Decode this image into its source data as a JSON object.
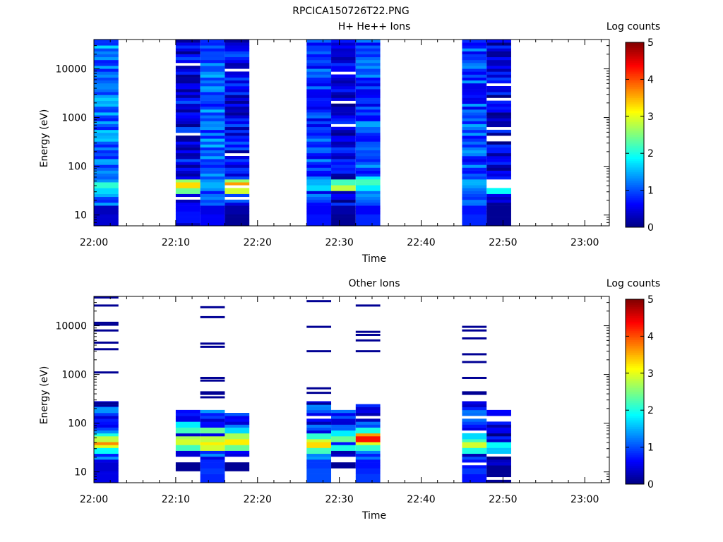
{
  "figure_title": "RPCICA150726T22.PNG",
  "chart_data": [
    {
      "type": "heatmap",
      "title": "H+ He++ Ions",
      "xlabel": "Time",
      "ylabel": "Energy (eV)",
      "y_scale": "log",
      "ylim": [
        6,
        40000
      ],
      "xlim": [
        "22:00",
        "23:03"
      ],
      "x_ticks": [
        "22:00",
        "22:10",
        "22:20",
        "22:30",
        "22:40",
        "22:50",
        "23:00"
      ],
      "y_ticks": [
        "10",
        "100",
        "1000",
        "10000"
      ],
      "colorbar": {
        "label": "Log counts",
        "range": [
          0,
          5
        ],
        "ticks": [
          "0",
          "1",
          "2",
          "3",
          "4",
          "5"
        ]
      },
      "columns": [
        {
          "start": "22:00",
          "end": "22:03",
          "seed": 11,
          "base": 1.2,
          "spread": 0.5,
          "gaps": 0.0,
          "peaks": [
            {
              "e": 40,
              "v": 2.1
            },
            {
              "e": 30,
              "v": 1.7
            }
          ],
          "low": [
            {
              "e": 12,
              "v": 0.3
            },
            {
              "e": 8,
              "v": 0.4
            }
          ]
        },
        {
          "start": "22:10",
          "end": "22:13",
          "seed": 23,
          "base": 0.55,
          "spread": 0.5,
          "gaps": 0.05,
          "peaks": [
            {
              "e": 50,
              "v": 2.6
            },
            {
              "e": 40,
              "v": 3.3
            },
            {
              "e": 33,
              "v": 2.4
            }
          ],
          "low": [
            {
              "e": 15,
              "v": 0.6
            },
            {
              "e": 9,
              "v": 0.7
            }
          ]
        },
        {
          "start": "22:13",
          "end": "22:16",
          "seed": 37,
          "base": 1.1,
          "spread": 0.45,
          "gaps": 0.0,
          "peaks": [
            {
              "e": 40,
              "v": 1.5
            }
          ],
          "low": [
            {
              "e": 12,
              "v": 0.5
            },
            {
              "e": 8,
              "v": 0.6
            }
          ]
        },
        {
          "start": "22:16",
          "end": "22:19",
          "seed": 41,
          "base": 0.6,
          "spread": 0.5,
          "gaps": 0.07,
          "peaks": [
            {
              "e": 50,
              "v": 2.6
            },
            {
              "e": 40,
              "v": 3.6
            },
            {
              "e": 32,
              "v": 2.9
            }
          ],
          "low": [
            {
              "e": 12,
              "v": 0.2
            },
            {
              "e": 8,
              "v": 0.1
            }
          ]
        },
        {
          "start": "22:26",
          "end": "22:29",
          "seed": 53,
          "base": 0.95,
          "spread": 0.5,
          "gaps": 0.0,
          "peaks": [
            {
              "e": 50,
              "v": 1.5
            },
            {
              "e": 38,
              "v": 1.7
            }
          ],
          "low": [
            {
              "e": 12,
              "v": 0.6
            },
            {
              "e": 8,
              "v": 0.7
            }
          ]
        },
        {
          "start": "22:29",
          "end": "22:32",
          "seed": 61,
          "base": 0.45,
          "spread": 0.5,
          "gaps": 0.07,
          "peaks": [
            {
              "e": 45,
              "v": 2.2
            },
            {
              "e": 36,
              "v": 2.8
            }
          ],
          "low": [
            {
              "e": 12,
              "v": 0.2
            },
            {
              "e": 8,
              "v": 0.1
            }
          ]
        },
        {
          "start": "22:32",
          "end": "22:35",
          "seed": 73,
          "base": 0.95,
          "spread": 0.5,
          "gaps": 0.0,
          "peaks": [
            {
              "e": 55,
              "v": 1.8
            },
            {
              "e": 45,
              "v": 2.2
            },
            {
              "e": 36,
              "v": 1.8
            }
          ],
          "low": [
            {
              "e": 12,
              "v": 0.6
            },
            {
              "e": 8,
              "v": 0.8
            }
          ]
        },
        {
          "start": "22:45",
          "end": "22:48",
          "seed": 83,
          "base": 1.0,
          "spread": 0.5,
          "gaps": 0.0,
          "peaks": [
            {
              "e": 45,
              "v": 1.5
            }
          ],
          "low": [
            {
              "e": 12,
              "v": 0.7
            },
            {
              "e": 8,
              "v": 0.8
            }
          ]
        },
        {
          "start": "22:48",
          "end": "22:51",
          "seed": 97,
          "base": 0.45,
          "spread": 0.5,
          "gaps": 0.07,
          "peaks": [
            {
              "e": 40,
              "v": 1.7
            },
            {
              "e": 33,
              "v": 1.9
            }
          ],
          "low": [
            {
              "e": 12,
              "v": 0.1
            },
            {
              "e": 8,
              "v": 0.1
            }
          ]
        }
      ]
    },
    {
      "type": "heatmap",
      "title": "Other Ions",
      "xlabel": "Time",
      "ylabel": "Energy (eV)",
      "y_scale": "log",
      "ylim": [
        6,
        40000
      ],
      "xlim": [
        "22:00",
        "23:03"
      ],
      "x_ticks": [
        "22:00",
        "22:10",
        "22:20",
        "22:30",
        "22:40",
        "22:50",
        "23:00"
      ],
      "y_ticks": [
        "10",
        "100",
        "1000",
        "10000"
      ],
      "colorbar": {
        "label": "Log counts",
        "range": [
          0,
          5
        ],
        "ticks": [
          "0",
          "1",
          "2",
          "3",
          "4",
          "5"
        ]
      },
      "columns": [
        {
          "start": "22:00",
          "end": "22:03",
          "seed": 101,
          "base": 0.9,
          "spread": 0.6,
          "gaps": 0.0,
          "top": 280,
          "peaks": [
            {
              "e": 55,
              "v": 2.0
            },
            {
              "e": 45,
              "v": 2.8
            },
            {
              "e": 38,
              "v": 3.7
            },
            {
              "e": 32,
              "v": 3.0
            },
            {
              "e": 28,
              "v": 1.9
            }
          ],
          "sparse": [
            11500,
            10500,
            8000,
            4500,
            3300,
            1100,
            255,
            230,
            26000,
            38000
          ],
          "low": [
            {
              "e": 12,
              "v": 0.4
            },
            {
              "e": 8,
              "v": 0.5
            }
          ]
        },
        {
          "start": "22:10",
          "end": "22:13",
          "seed": 113,
          "base": 0.9,
          "spread": 0.55,
          "gaps": 0.0,
          "top": 175,
          "bottom": 20,
          "peaks": [
            {
              "e": 95,
              "v": 1.8
            },
            {
              "e": 70,
              "v": 2.2
            },
            {
              "e": 50,
              "v": 2.7
            },
            {
              "e": 40,
              "v": 2.9
            },
            {
              "e": 30,
              "v": 2.2
            }
          ],
          "sparse": [],
          "block": [
            {
              "from": 11,
              "to": 15,
              "v": 0.1
            }
          ]
        },
        {
          "start": "22:13",
          "end": "22:16",
          "seed": 127,
          "base": 0.9,
          "spread": 0.55,
          "gaps": 0.0,
          "top": 200,
          "peaks": [
            {
              "e": 70,
              "v": 2.4
            },
            {
              "e": 50,
              "v": 2.8
            },
            {
              "e": 38,
              "v": 3.2
            },
            {
              "e": 32,
              "v": 2.9
            }
          ],
          "sparse": [
            24000,
            15000,
            4300,
            3700,
            850,
            750,
            430,
            400,
            340
          ],
          "low": [
            {
              "e": 15,
              "v": 0.8
            },
            {
              "e": 10,
              "v": 0.9
            },
            {
              "e": 7,
              "v": 0.8
            }
          ]
        },
        {
          "start": "22:16",
          "end": "22:19",
          "seed": 131,
          "base": 0.9,
          "spread": 0.55,
          "gaps": 0.0,
          "top": 170,
          "bottom": 20,
          "peaks": [
            {
              "e": 75,
              "v": 1.7
            },
            {
              "e": 55,
              "v": 2.7
            },
            {
              "e": 42,
              "v": 3.2
            },
            {
              "e": 33,
              "v": 2.4
            }
          ],
          "sparse": [],
          "block": [
            {
              "from": 11,
              "to": 15,
              "v": 0.1
            }
          ]
        },
        {
          "start": "22:26",
          "end": "22:29",
          "seed": 139,
          "base": 0.8,
          "spread": 0.6,
          "gaps": 0.05,
          "top": 280,
          "peaks": [
            {
              "e": 55,
              "v": 2.1
            },
            {
              "e": 42,
              "v": 2.9
            },
            {
              "e": 34,
              "v": 3.3
            },
            {
              "e": 28,
              "v": 2.2
            }
          ],
          "sparse": [
            32000,
            9500,
            3000,
            520,
            420,
            250
          ],
          "low": [
            {
              "e": 15,
              "v": 0.9
            },
            {
              "e": 9,
              "v": 1.0
            },
            {
              "e": 7,
              "v": 1.0
            }
          ]
        },
        {
          "start": "22:29",
          "end": "22:32",
          "seed": 149,
          "base": 0.7,
          "spread": 0.5,
          "gaps": 0.05,
          "top": 190,
          "bottom": 20,
          "peaks": [
            {
              "e": 65,
              "v": 1.8
            },
            {
              "e": 45,
              "v": 2.4
            },
            {
              "e": 33,
              "v": 2.0
            }
          ],
          "sparse": [],
          "block": [
            {
              "from": 11,
              "to": 15,
              "v": 0.1
            }
          ]
        },
        {
          "start": "22:32",
          "end": "22:35",
          "seed": 151,
          "base": 0.8,
          "spread": 0.6,
          "gaps": 0.05,
          "top": 230,
          "peaks": [
            {
              "e": 70,
              "v": 2.0
            },
            {
              "e": 55,
              "v": 3.6
            },
            {
              "e": 45,
              "v": 4.3
            },
            {
              "e": 36,
              "v": 3.0
            },
            {
              "e": 30,
              "v": 2.1
            }
          ],
          "sparse": [
            26000,
            7500,
            6500,
            5000,
            3000
          ],
          "low": [
            {
              "e": 15,
              "v": 0.7
            },
            {
              "e": 10,
              "v": 0.8
            },
            {
              "e": 7,
              "v": 0.9
            }
          ]
        },
        {
          "start": "22:45",
          "end": "22:48",
          "seed": 163,
          "base": 0.8,
          "spread": 0.6,
          "gaps": 0.05,
          "top": 300,
          "peaks": [
            {
              "e": 55,
              "v": 1.7
            },
            {
              "e": 42,
              "v": 2.2
            },
            {
              "e": 35,
              "v": 2.9
            },
            {
              "e": 29,
              "v": 2.0
            }
          ],
          "sparse": [
            9500,
            8000,
            5500,
            2600,
            1800,
            850,
            430,
            400
          ],
          "low": [
            {
              "e": 15,
              "v": 0.7
            },
            {
              "e": 10,
              "v": 0.9
            },
            {
              "e": 7,
              "v": 0.7
            }
          ]
        },
        {
          "start": "22:48",
          "end": "22:51",
          "seed": 173,
          "base": 0.3,
          "spread": 0.5,
          "gaps": 0.12,
          "top": 200,
          "peaks": [
            {
              "e": 35,
              "v": 1.9
            },
            {
              "e": 29,
              "v": 1.6
            }
          ],
          "low": [
            {
              "e": 9,
              "v": 0.1
            }
          ]
        }
      ]
    }
  ]
}
